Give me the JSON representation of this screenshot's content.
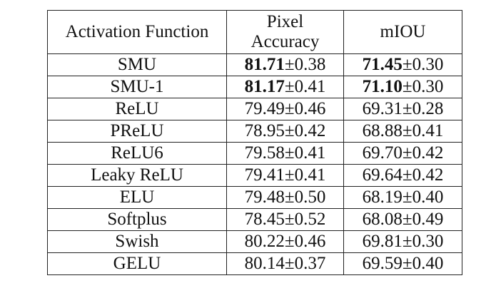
{
  "table": {
    "headers": [
      "Activation Function",
      "Pixel Accuracy",
      "mIOU"
    ],
    "rows": [
      {
        "name": "SMU",
        "acc_mean": "81.71",
        "acc_std": "±0.38",
        "miou_mean": "71.45",
        "miou_std": "±0.30",
        "bold": true
      },
      {
        "name": "SMU-1",
        "acc_mean": "81.17",
        "acc_std": "±0.41",
        "miou_mean": "71.10",
        "miou_std": "±0.30",
        "bold": true
      },
      {
        "name": "ReLU",
        "acc_mean": "79.49",
        "acc_std": "±0.46",
        "miou_mean": "69.31",
        "miou_std": "±0.28",
        "bold": false
      },
      {
        "name": "PReLU",
        "acc_mean": "78.95",
        "acc_std": "±0.42",
        "miou_mean": "68.88",
        "miou_std": "±0.41",
        "bold": false
      },
      {
        "name": "ReLU6",
        "acc_mean": "79.58",
        "acc_std": "±0.41",
        "miou_mean": "69.70",
        "miou_std": "±0.42",
        "bold": false
      },
      {
        "name": "Leaky ReLU",
        "acc_mean": "79.41",
        "acc_std": "±0.41",
        "miou_mean": "69.64",
        "miou_std": "±0.42",
        "bold": false
      },
      {
        "name": "ELU",
        "acc_mean": "79.48",
        "acc_std": "±0.50",
        "miou_mean": "68.19",
        "miou_std": "±0.40",
        "bold": false
      },
      {
        "name": "Softplus",
        "acc_mean": "78.45",
        "acc_std": "±0.52",
        "miou_mean": "68.08",
        "miou_std": "±0.49",
        "bold": false
      },
      {
        "name": "Swish",
        "acc_mean": "80.22",
        "acc_std": "±0.46",
        "miou_mean": "69.81",
        "miou_std": "±0.30",
        "bold": false
      },
      {
        "name": "GELU",
        "acc_mean": "80.14",
        "acc_std": "±0.37",
        "miou_mean": "69.59",
        "miou_std": "±0.40",
        "bold": false
      }
    ]
  }
}
